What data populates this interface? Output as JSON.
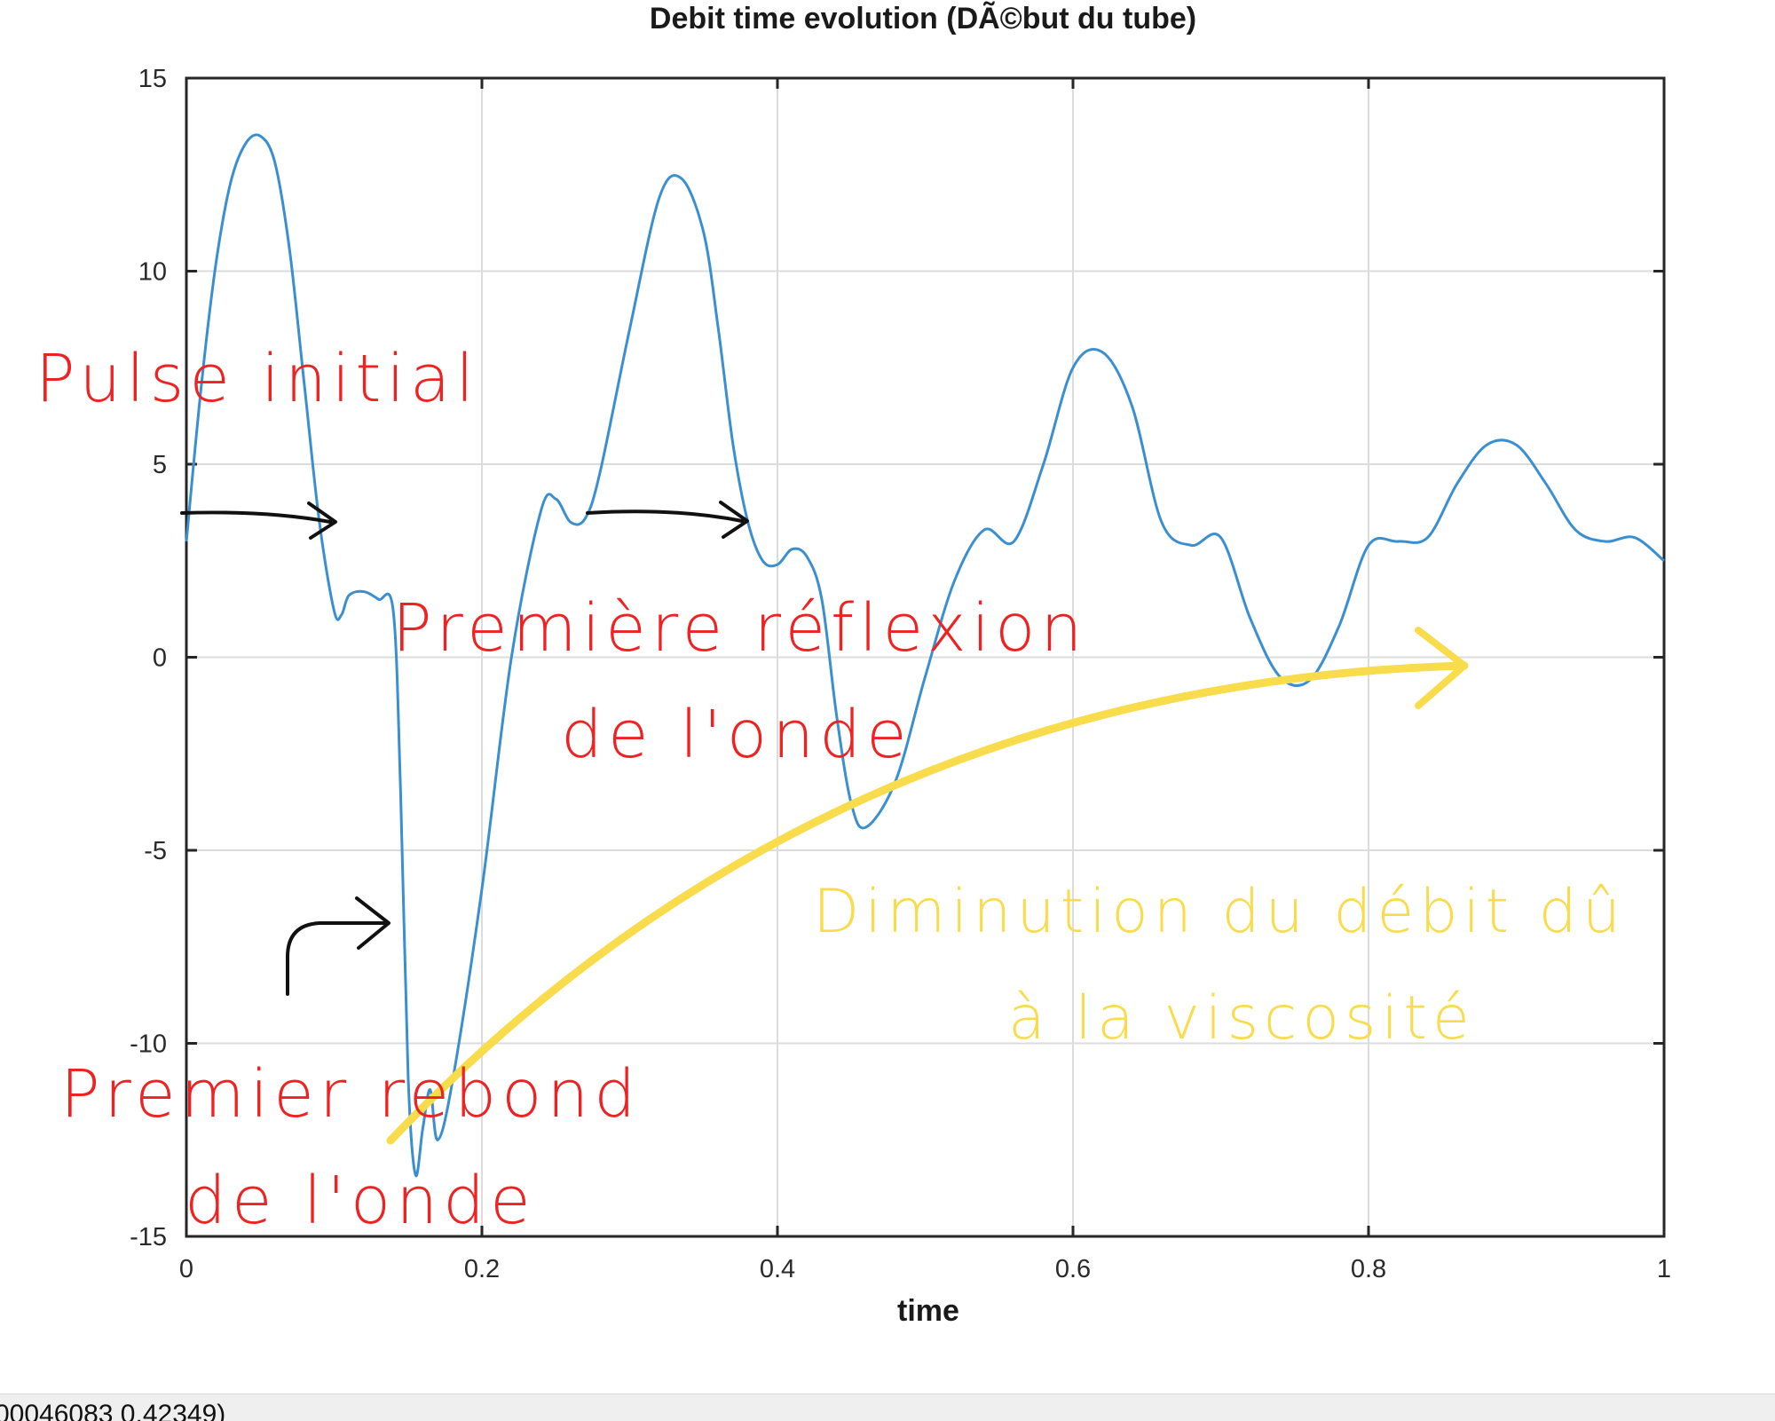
{
  "chart_data": {
    "type": "line",
    "title": "Debit time evolution (DÃ©but du tube)",
    "xlabel": "time",
    "ylabel": "",
    "xlim": [
      0,
      1
    ],
    "ylim": [
      -15,
      15
    ],
    "xticks": [
      "0",
      "0.2",
      "0.4",
      "0.6",
      "0.8",
      "1"
    ],
    "yticks": [
      "15",
      "10",
      "5",
      "0",
      "-5",
      "-10",
      "-15"
    ],
    "grid": true,
    "colors": {
      "series": "#3a8fd0",
      "annotation_red": "#ee2222",
      "annotation_yellow": "#f8dc4c",
      "arrow": "#111111"
    },
    "series": [
      {
        "x": [
          0.0,
          0.01,
          0.02,
          0.03,
          0.04,
          0.05,
          0.06,
          0.07,
          0.08,
          0.09,
          0.1,
          0.105,
          0.11,
          0.12,
          0.13,
          0.14,
          0.145,
          0.15,
          0.155,
          0.16,
          0.165,
          0.17,
          0.18,
          0.2,
          0.22,
          0.24,
          0.25,
          0.26,
          0.27,
          0.28,
          0.3,
          0.32,
          0.335,
          0.35,
          0.36,
          0.37,
          0.38,
          0.39,
          0.4,
          0.41,
          0.42,
          0.43,
          0.44,
          0.45,
          0.46,
          0.48,
          0.5,
          0.52,
          0.54,
          0.56,
          0.58,
          0.6,
          0.62,
          0.64,
          0.66,
          0.68,
          0.7,
          0.72,
          0.74,
          0.76,
          0.78,
          0.8,
          0.82,
          0.84,
          0.86,
          0.88,
          0.9,
          0.92,
          0.94,
          0.96,
          0.98,
          1.0
        ],
        "y": [
          3.0,
          7.0,
          10.2,
          12.3,
          13.3,
          13.5,
          12.8,
          10.5,
          7.0,
          3.5,
          1.2,
          1.1,
          1.6,
          1.7,
          1.5,
          1.2,
          -3.5,
          -10.8,
          -13.4,
          -12.2,
          -11.2,
          -12.5,
          -11.0,
          -6.0,
          0.0,
          3.8,
          4.1,
          3.5,
          3.6,
          4.8,
          8.5,
          11.9,
          12.4,
          11.0,
          8.5,
          5.5,
          3.5,
          2.5,
          2.4,
          2.8,
          2.6,
          1.5,
          -1.5,
          -3.8,
          -4.4,
          -3.2,
          -0.5,
          2.0,
          3.3,
          3.0,
          5.0,
          7.5,
          7.9,
          6.5,
          3.5,
          2.9,
          3.1,
          1.0,
          -0.5,
          -0.6,
          0.8,
          2.9,
          3.0,
          3.1,
          4.5,
          5.5,
          5.5,
          4.5,
          3.3,
          3.0,
          3.1,
          2.5
        ]
      }
    ],
    "annotations": {
      "pulse": "Pulse initial",
      "reflexion_1": "Première réflexion",
      "reflexion_2": "de l'onde",
      "rebond_1": "Premier rebond",
      "rebond_2": "de l'onde",
      "viscosite_1": "Diminution du débit dû",
      "viscosite_2": "à la viscosité"
    }
  },
  "statusbar": {
    "text": "00046083   0.42349)"
  }
}
